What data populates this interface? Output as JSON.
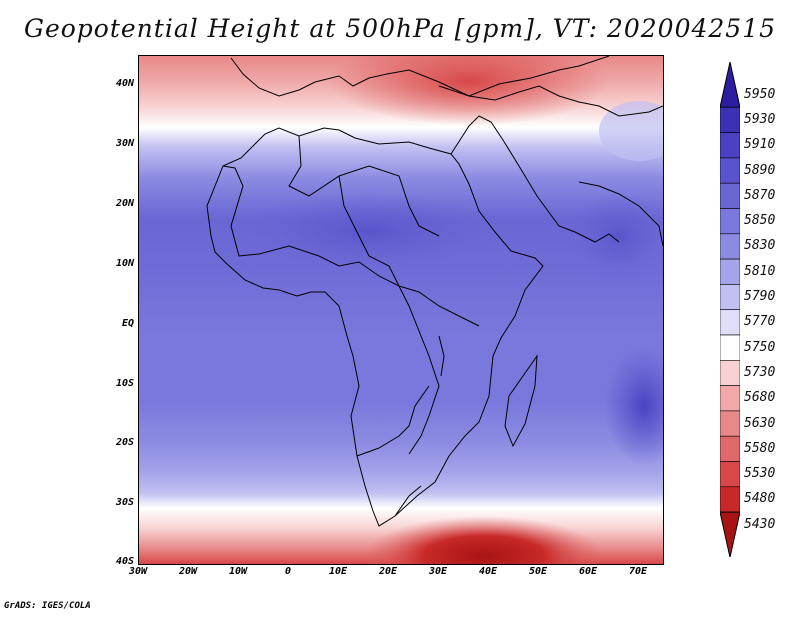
{
  "title": "Geopotential Height at 500hPa [gpm], VT: 2020042515",
  "footer": "GrADS: IGES/COLA",
  "lat_labels": [
    "40N",
    "30N",
    "20N",
    "10N",
    "EQ",
    "10S",
    "20S",
    "30S",
    "40S"
  ],
  "lon_labels": [
    "30W",
    "20W",
    "10W",
    "0",
    "10E",
    "20E",
    "30E",
    "40E",
    "50E",
    "60E",
    "70E"
  ],
  "colorbar": {
    "levels": [
      "5950",
      "5930",
      "5910",
      "5890",
      "5870",
      "5850",
      "5830",
      "5810",
      "5790",
      "5770",
      "5750",
      "5730",
      "5680",
      "5630",
      "5580",
      "5530",
      "5480",
      "5430"
    ],
    "colors": [
      "#2c1ea0",
      "#3b31b4",
      "#4a42c2",
      "#5a54cc",
      "#6a66d4",
      "#7a78dc",
      "#8c8be2",
      "#a4a4ea",
      "#c0c0f2",
      "#dedef8",
      "#ffffff",
      "#f8d2d2",
      "#f0a8a8",
      "#e88888",
      "#e06868",
      "#d84848",
      "#c82828",
      "#a81414"
    ]
  }
}
